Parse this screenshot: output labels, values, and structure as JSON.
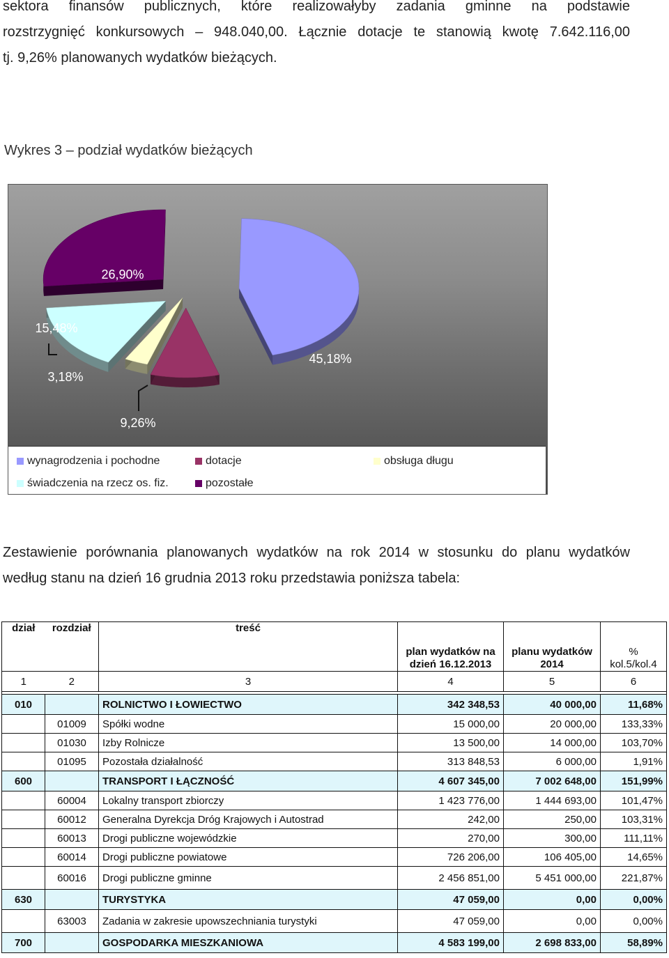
{
  "intro": {
    "line1": "sektora finansów publicznych, które realizowałyby zadania gminne na podstawie",
    "line2": "rozstrzygnięć konkursowych – 948.040,00. Łącznie dotacje te stanowią kwotę 7.642.116,00",
    "line3": "tj. 9,26% planowanych wydatków bieżących."
  },
  "chart_caption": "Wykres 3 – podział wydatków bieżących",
  "chart_data": {
    "type": "pie",
    "title": "",
    "categories": [
      "wynagrodzenia i pochodne",
      "dotacje",
      "obsługa długu",
      "świadczenia na rzecz os. fiz.",
      "pozostałe"
    ],
    "values": [
      45.18,
      9.26,
      3.18,
      15.48,
      26.9
    ],
    "data_labels": [
      "45,18%",
      "9,26%",
      "3,18%",
      "15,48%",
      "26,90%"
    ],
    "colors": [
      "#9999ff",
      "#993366",
      "#ffffcc",
      "#ccffff",
      "#660066"
    ],
    "legend_position": "bottom",
    "exploded": true,
    "three_d": true
  },
  "table_intro": {
    "line1": "Zestawienie porównania planowanych wydatków na rok 2014 w stosunku do planu wydatków",
    "line2": "według stanu na dzień 16 grudnia 2013 roku przedstawia poniższa tabela:"
  },
  "table": {
    "headers": {
      "dzial": "dział",
      "rozdzial": "rozdział",
      "tresc": "treść",
      "plan_2013": "plan wydatków na dzień 16.12.2013",
      "plan_2014": "planu wydatków 2014",
      "pct": "% kol.5/kol.4"
    },
    "col_numbers": [
      "1",
      "2",
      "3",
      "4",
      "5",
      "6"
    ],
    "rows": [
      {
        "type": "sec",
        "dzial": "010",
        "rozdzial": "",
        "tresc": "ROLNICTWO I ŁOWIECTWO",
        "plan2013": "342 348,53",
        "plan2014": "40 000,00",
        "pct": "11,68%"
      },
      {
        "type": "sub",
        "dzial": "",
        "rozdzial": "01009",
        "tresc": "Spółki wodne",
        "plan2013": "15 000,00",
        "plan2014": "20 000,00",
        "pct": "133,33%"
      },
      {
        "type": "sub",
        "dzial": "",
        "rozdzial": "01030",
        "tresc": "Izby Rolnicze",
        "plan2013": "13 500,00",
        "plan2014": "14 000,00",
        "pct": "103,70%"
      },
      {
        "type": "sub",
        "dzial": "",
        "rozdzial": "01095",
        "tresc": "Pozostała działalność",
        "plan2013": "313 848,53",
        "plan2014": "6 000,00",
        "pct": "1,91%"
      },
      {
        "type": "sec",
        "dzial": "600",
        "rozdzial": "",
        "tresc": "TRANSPORT I ŁĄCZNOŚĆ",
        "plan2013": "4 607 345,00",
        "plan2014": "7 002 648,00",
        "pct": "151,99%"
      },
      {
        "type": "sub",
        "dzial": "",
        "rozdzial": "60004",
        "tresc": "Lokalny transport zbiorczy",
        "plan2013": "1 423 776,00",
        "plan2014": "1 444 693,00",
        "pct": "101,47%"
      },
      {
        "type": "sub",
        "dzial": "",
        "rozdzial": "60012",
        "tresc": "Generalna Dyrekcja Dróg Krajowych i Autostrad",
        "plan2013": "242,00",
        "plan2014": "250,00",
        "pct": "103,31%"
      },
      {
        "type": "sub",
        "dzial": "",
        "rozdzial": "60013",
        "tresc": "Drogi publiczne wojewódzkie",
        "plan2013": "270,00",
        "plan2014": "300,00",
        "pct": "111,11%"
      },
      {
        "type": "sub",
        "dzial": "",
        "rozdzial": "60014",
        "tresc": "Drogi publiczne powiatowe",
        "plan2013": "726 206,00",
        "plan2014": "106 405,00",
        "pct": "14,65%"
      },
      {
        "type": "sub tall",
        "dzial": "",
        "rozdzial": "60016",
        "tresc": "Drogi publiczne gminne",
        "plan2013": "2 456 851,00",
        "plan2014": "5 451 000,00",
        "pct": "221,87%"
      },
      {
        "type": "sec",
        "dzial": "630",
        "rozdzial": "",
        "tresc": "TURYSTYKA",
        "plan2013": "47 059,00",
        "plan2014": "0,00",
        "pct": "0,00%"
      },
      {
        "type": "sub tall",
        "dzial": "",
        "rozdzial": "63003",
        "tresc": "Zadania w zakresie upowszechniania turystyki",
        "plan2013": "47 059,00",
        "plan2014": "0,00",
        "pct": "0,00%"
      },
      {
        "type": "sec",
        "dzial": "700",
        "rozdzial": "",
        "tresc": "GOSPODARKA MIESZKANIOWA",
        "plan2013": "4 583 199,00",
        "plan2014": "2 698 833,00",
        "pct": "58,89%"
      }
    ]
  }
}
